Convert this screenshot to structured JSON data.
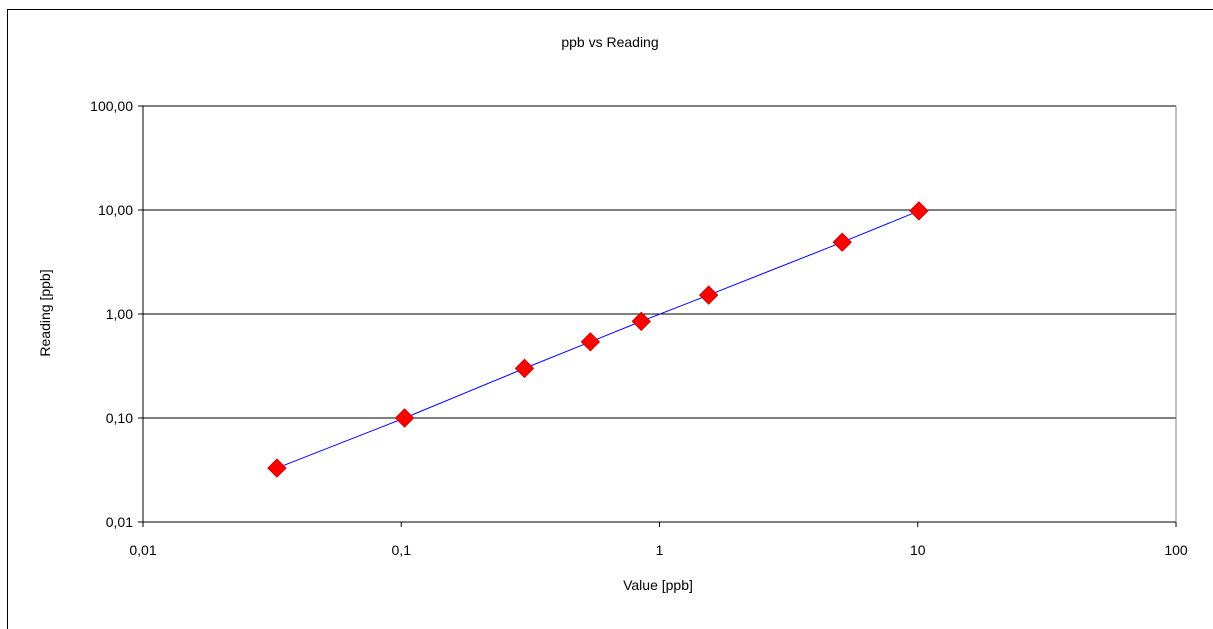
{
  "chart_data": {
    "type": "scatter",
    "title": "ppb vs Reading",
    "xlabel": "Value [ppb]",
    "ylabel": "Reading [ppb]",
    "xscale": "log",
    "yscale": "log",
    "xlim": [
      0.01,
      100
    ],
    "ylim": [
      0.01,
      100
    ],
    "x_ticks": [
      0.01,
      0.1,
      1,
      10,
      100
    ],
    "x_tick_labels": [
      "0,01",
      "0,1",
      "1",
      "10",
      "100"
    ],
    "y_ticks": [
      0.01,
      0.1,
      1,
      10,
      100
    ],
    "y_tick_labels": [
      "0,01",
      "0,10",
      "1,00",
      "10,00",
      "100,00"
    ],
    "grid": "horizontal major",
    "legend": "none",
    "series": [
      {
        "x": [
          0.033,
          0.103,
          0.3,
          0.54,
          0.85,
          1.55,
          5.1,
          10.1
        ],
        "y": [
          0.033,
          0.1,
          0.3,
          0.54,
          0.85,
          1.52,
          4.9,
          9.8
        ],
        "marker": "diamond",
        "marker_color": "#ff0000",
        "line_color": "#0000ff"
      }
    ]
  }
}
